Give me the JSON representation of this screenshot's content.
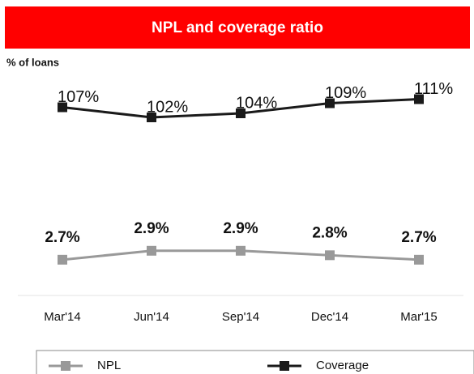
{
  "chart_data": {
    "type": "line",
    "title": "NPL and coverage ratio",
    "ylabel": "% of loans",
    "categories": [
      "Mar'14",
      "Jun'14",
      "Sep'14",
      "Dec'14",
      "Mar'15"
    ],
    "series": [
      {
        "name": "NPL",
        "color": "#999999",
        "values": [
          2.7,
          2.9,
          2.9,
          2.8,
          2.7
        ],
        "value_labels": [
          "2.7%",
          "2.9%",
          "2.9%",
          "2.8%",
          "2.7%"
        ]
      },
      {
        "name": "Coverage",
        "color": "#1a1a1a",
        "axis": "y2",
        "values": [
          107,
          102,
          104,
          109,
          111
        ],
        "value_labels": [
          "107%",
          "102%",
          "104%",
          "109%",
          "111%"
        ]
      }
    ],
    "ylim": [
      1.9,
      6.7
    ],
    "y2lim": [
      14,
      120
    ],
    "legend": "bottom"
  }
}
